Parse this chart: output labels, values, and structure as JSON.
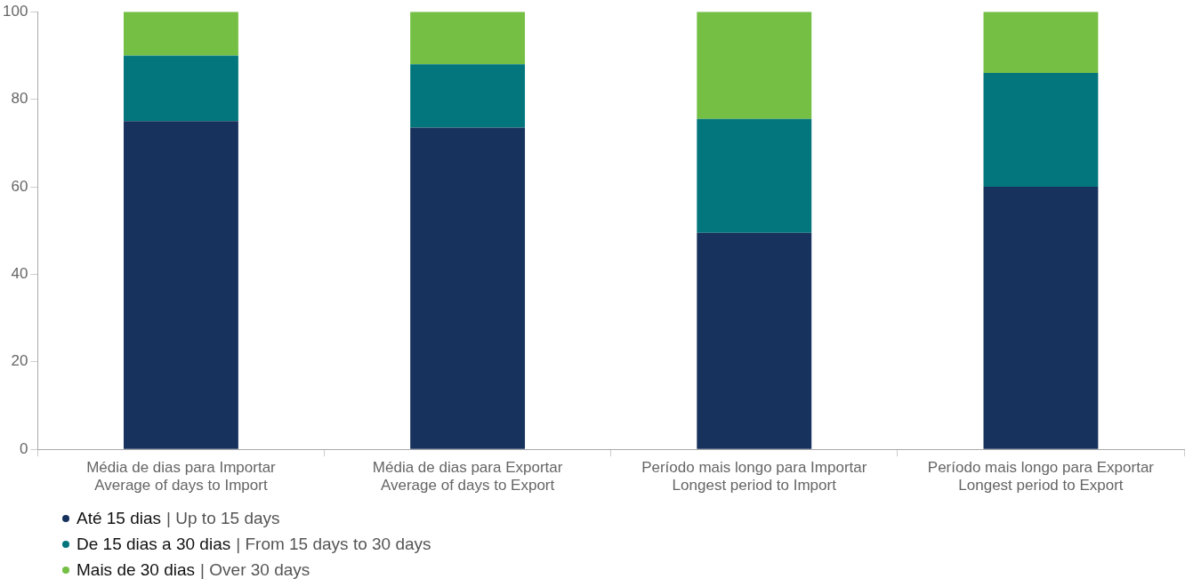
{
  "chart_data": {
    "type": "bar",
    "stacked": true,
    "grid": false,
    "legend": "bottom left",
    "categories": [
      "Média de dias para Importar\nAverage of days to Import",
      "Média de dias para Exportar\nAverage of days to Export",
      "Período mais longo para Importar\nLongest period to Import",
      "Período mais longo para Exportar\nLongest period to Export"
    ],
    "series": [
      {
        "name": "Até 15 dias | Up to 15 days",
        "color": "#17325c",
        "values": [
          75,
          73.5,
          49.5,
          60
        ]
      },
      {
        "name": "De 15 dias a 30 dias | From 15 days to 30 days",
        "color": "#02767c",
        "values": [
          15,
          14.5,
          26,
          26
        ]
      },
      {
        "name": "Mais de 30 dias | Over 30 days",
        "color": "#74bf44",
        "values": [
          10,
          12,
          24.5,
          14
        ]
      }
    ],
    "ylim": [
      0,
      100
    ],
    "yticks": [
      0,
      20,
      40,
      60,
      80,
      100
    ]
  }
}
